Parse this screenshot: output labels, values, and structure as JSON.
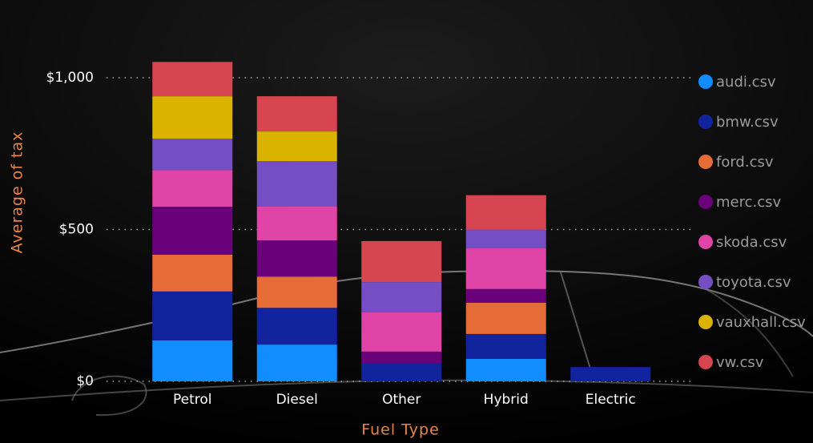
{
  "chart_data": {
    "type": "bar",
    "stacked": true,
    "x_label": "Fuel Type",
    "y_label": "Average of tax",
    "categories": [
      "Petrol",
      "Diesel",
      "Other",
      "Hybrid",
      "Electric"
    ],
    "series": [
      {
        "name": "audi.csv",
        "color": "#118dff",
        "values": [
          135,
          121,
          null,
          74,
          null
        ]
      },
      {
        "name": "bmw.csv",
        "color": "#12239e",
        "values": [
          161,
          121,
          58,
          82,
          47
        ]
      },
      {
        "name": "ford.csv",
        "color": "#e66c37",
        "values": [
          121,
          103,
          null,
          103,
          null
        ]
      },
      {
        "name": "merc.csv",
        "color": "#6b007b",
        "values": [
          158,
          119,
          40,
          45,
          null
        ]
      },
      {
        "name": "skoda.csv",
        "color": "#e044a7",
        "values": [
          121,
          113,
          129,
          135,
          null
        ]
      },
      {
        "name": "toyota.csv",
        "color": "#744ec2",
        "values": [
          103,
          148,
          100,
          61,
          null
        ]
      },
      {
        "name": "vauxhall.csv",
        "color": "#d9b300",
        "values": [
          140,
          98,
          null,
          null,
          null
        ]
      },
      {
        "name": "vw.csv",
        "color": "#d64550",
        "values": [
          113,
          116,
          135,
          113,
          null
        ]
      }
    ],
    "ylim": [
      0,
      1100
    ],
    "yticks": [
      {
        "value": 0,
        "label": "$0"
      },
      {
        "value": 500,
        "label": "$500"
      },
      {
        "value": 1000,
        "label": "$1,000"
      }
    ],
    "grid": true,
    "legend": "right"
  }
}
